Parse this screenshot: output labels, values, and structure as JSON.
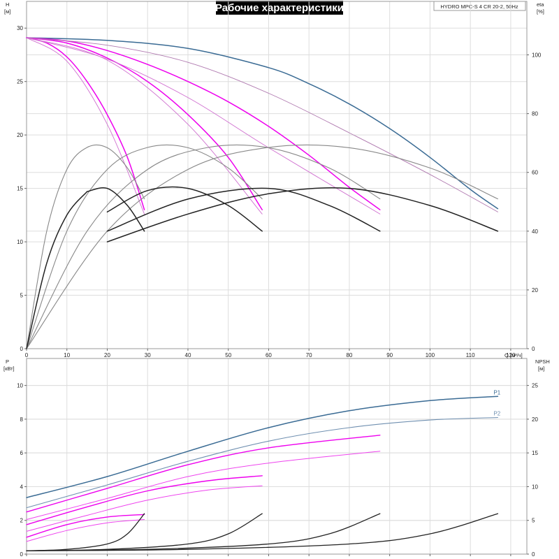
{
  "title": "Рабочие характеристики",
  "model_label": "HYDRO MPC-S 4 CR 20-2, 50Hz",
  "chart_data": [
    {
      "type": "line",
      "panel": "head_efficiency",
      "x_axis": {
        "label": "Q [м³/ч]",
        "ticks": [
          0,
          10,
          20,
          30,
          40,
          50,
          60,
          70,
          80,
          90,
          100,
          110,
          120
        ],
        "lim": [
          0,
          124
        ]
      },
      "y_axis_left": {
        "label": "H [м]",
        "ticks": [
          0,
          5,
          10,
          15,
          20,
          25,
          30
        ],
        "lim": [
          0,
          32.5
        ]
      },
      "y_axis_right": {
        "label": "eta [%]",
        "ticks": [
          0,
          20,
          40,
          60,
          80,
          100
        ],
        "lim": [
          0,
          118.2
        ]
      },
      "grid": true,
      "series": [
        {
          "group": "head",
          "color": "#3a6b94",
          "width": 1.5,
          "x": [
            0,
            20,
            40,
            60,
            70,
            80,
            90,
            100,
            110,
            116.8
          ],
          "y": [
            29.1,
            28.85,
            28.1,
            26.3,
            24.8,
            22.9,
            20.6,
            17.9,
            14.9,
            13.1
          ],
          "axis": "left"
        },
        {
          "group": "head",
          "color": "#ee00ee",
          "width": 1.5,
          "x": [
            0,
            10,
            20,
            30,
            40,
            50,
            60,
            70,
            80,
            87.6
          ],
          "y": [
            29.1,
            28.8,
            27.9,
            26.6,
            25.0,
            23.1,
            20.8,
            18.1,
            15.1,
            13.0
          ],
          "axis": "left"
        },
        {
          "group": "head",
          "color": "#ee00ee",
          "width": 1.5,
          "x": [
            0,
            10,
            20,
            30,
            40,
            50,
            58.4
          ],
          "y": [
            29.1,
            28.6,
            27.2,
            25.0,
            21.9,
            17.9,
            13.0
          ],
          "axis": "left"
        },
        {
          "group": "head",
          "color": "#ee00ee",
          "width": 1.5,
          "x": [
            0,
            5,
            10,
            15,
            20,
            25,
            29.2
          ],
          "y": [
            29.1,
            28.6,
            27.3,
            25.0,
            21.9,
            17.9,
            13.0
          ],
          "axis": "left"
        },
        {
          "group": "head_thin",
          "color": "#b07ab0",
          "width": 0.9,
          "x": [
            0,
            20,
            40,
            60,
            80,
            100,
            116.8
          ],
          "y": [
            29.1,
            28.4,
            26.8,
            23.9,
            20.2,
            16.3,
            12.8
          ],
          "axis": "left"
        },
        {
          "group": "head_thin",
          "color": "#d070d0",
          "width": 0.9,
          "x": [
            0,
            20,
            40,
            60,
            87.6
          ],
          "y": [
            29.1,
            27.1,
            23.5,
            18.8,
            12.6
          ],
          "axis": "left"
        },
        {
          "group": "head_thin",
          "color": "#d070d0",
          "width": 0.9,
          "x": [
            0,
            20,
            40,
            58.4
          ],
          "y": [
            29.1,
            27.0,
            21.0,
            12.6
          ],
          "axis": "left"
        },
        {
          "group": "head_thin",
          "color": "#d070d0",
          "width": 0.9,
          "x": [
            0,
            10,
            20,
            29.2
          ],
          "y": [
            29.1,
            26.9,
            21.0,
            12.6
          ],
          "axis": "left"
        },
        {
          "group": "eta",
          "color": "#888888",
          "width": 1.1,
          "x": [
            0,
            5,
            10,
            15,
            20,
            25,
            29.2
          ],
          "y": [
            0,
            40.0,
            61.0,
            68.5,
            68.4,
            61.5,
            51.0
          ],
          "axis": "right"
        },
        {
          "group": "eta",
          "color": "#888888",
          "width": 1.1,
          "x": [
            0,
            10,
            20,
            30,
            40,
            50,
            58.4
          ],
          "y": [
            0,
            40.0,
            61.0,
            68.5,
            68.4,
            61.5,
            51.0
          ],
          "axis": "right"
        },
        {
          "group": "eta",
          "color": "#888888",
          "width": 1.1,
          "x": [
            0,
            15,
            30,
            45,
            60,
            75,
            87.6
          ],
          "y": [
            0,
            40.0,
            61.0,
            68.5,
            68.4,
            61.5,
            51.0
          ],
          "axis": "right"
        },
        {
          "group": "eta",
          "color": "#888888",
          "width": 1.1,
          "x": [
            0,
            20,
            40,
            60,
            80,
            100,
            116.8
          ],
          "y": [
            0,
            40.0,
            61.0,
            68.5,
            68.4,
            61.5,
            51.0
          ],
          "axis": "right"
        },
        {
          "group": "eta_line2",
          "color": "#222222",
          "width": 1.5,
          "x": [
            15,
            20,
            25,
            29.2
          ],
          "y": [
            14.7,
            15.0,
            13.4,
            11.0
          ],
          "axis": "left"
        },
        {
          "group": "eta_line2",
          "color": "#222222",
          "width": 1.5,
          "x": [
            20,
            30,
            40,
            50,
            58.4
          ],
          "y": [
            12.8,
            14.8,
            15.0,
            13.4,
            11.0
          ],
          "axis": "left"
        },
        {
          "group": "eta_line2",
          "color": "#222222",
          "width": 1.5,
          "x": [
            20,
            40,
            60,
            75,
            87.6
          ],
          "y": [
            11.0,
            14.0,
            15.0,
            13.4,
            11.0
          ],
          "axis": "left"
        },
        {
          "group": "eta_line2",
          "color": "#222222",
          "width": 1.5,
          "x": [
            20,
            40,
            60,
            80,
            100,
            116.8
          ],
          "y": [
            10.0,
            12.6,
            14.5,
            15.0,
            13.4,
            11.0
          ],
          "axis": "left"
        },
        {
          "group": "eta_line2",
          "color": "#222222",
          "width": 1.5,
          "x": [
            0,
            5,
            10,
            15
          ],
          "y": [
            0,
            8.0,
            12.5,
            14.7
          ],
          "axis": "left"
        }
      ]
    },
    {
      "type": "line",
      "panel": "power_npsh",
      "x_axis": {
        "lim": [
          0,
          124
        ]
      },
      "y_axis_left": {
        "label": "P [кВт]",
        "ticks": [
          0,
          2,
          4,
          6,
          8,
          10
        ],
        "lim": [
          0,
          11.6
        ]
      },
      "y_axis_right": {
        "label": "NPSH [м]",
        "ticks": [
          0,
          5,
          10,
          15,
          20,
          25
        ],
        "lim": [
          0,
          29.0
        ]
      },
      "grid": true,
      "series": [
        {
          "name": "P1",
          "group": "p1",
          "color": "#3a6b94",
          "width": 1.5,
          "x": [
            0,
            20,
            40,
            60,
            80,
            100,
            116.8
          ],
          "y": [
            3.35,
            4.6,
            6.1,
            7.5,
            8.5,
            9.1,
            9.35
          ],
          "axis": "left"
        },
        {
          "name": "P2",
          "group": "p2",
          "color": "#6f8fb0",
          "width": 1.1,
          "x": [
            0,
            20,
            40,
            60,
            80,
            100,
            116.8
          ],
          "y": [
            2.75,
            4.1,
            5.5,
            6.7,
            7.5,
            7.95,
            8.1
          ],
          "axis": "left"
        },
        {
          "group": "p",
          "color": "#ee00ee",
          "width": 1.4,
          "x": [
            0,
            20,
            40,
            60,
            87.6
          ],
          "y": [
            2.5,
            3.9,
            5.3,
            6.3,
            7.05
          ],
          "axis": "left"
        },
        {
          "group": "p",
          "color": "#ee44ee",
          "width": 1.0,
          "x": [
            0,
            20,
            40,
            60,
            87.6
          ],
          "y": [
            2.05,
            3.3,
            4.6,
            5.4,
            6.1
          ],
          "axis": "left"
        },
        {
          "group": "p",
          "color": "#ee00ee",
          "width": 1.4,
          "x": [
            0,
            15,
            30,
            45,
            58.4
          ],
          "y": [
            1.75,
            2.8,
            3.75,
            4.35,
            4.65
          ],
          "axis": "left"
        },
        {
          "group": "p",
          "color": "#ee44ee",
          "width": 1.0,
          "x": [
            0,
            15,
            30,
            45,
            58.4
          ],
          "y": [
            1.35,
            2.3,
            3.2,
            3.8,
            4.05
          ],
          "axis": "left"
        },
        {
          "group": "p",
          "color": "#ee00ee",
          "width": 1.4,
          "x": [
            0,
            10,
            20,
            29.2
          ],
          "y": [
            1.0,
            1.75,
            2.2,
            2.35
          ],
          "axis": "left"
        },
        {
          "group": "p",
          "color": "#ee44ee",
          "width": 1.0,
          "x": [
            0,
            10,
            20,
            29.2
          ],
          "y": [
            0.75,
            1.4,
            1.85,
            2.05
          ],
          "axis": "left"
        },
        {
          "group": "npsh",
          "color": "#222222",
          "width": 1.3,
          "x": [
            0,
            10,
            20,
            25,
            29.2
          ],
          "y": [
            0.5,
            0.7,
            1.5,
            3.0,
            6.0
          ],
          "axis": "right"
        },
        {
          "group": "npsh",
          "color": "#222222",
          "width": 1.3,
          "x": [
            0,
            20,
            40,
            50,
            58.4
          ],
          "y": [
            0.5,
            0.7,
            1.5,
            3.0,
            6.0
          ],
          "axis": "right"
        },
        {
          "group": "npsh",
          "color": "#222222",
          "width": 1.3,
          "x": [
            0,
            30,
            60,
            75,
            87.6
          ],
          "y": [
            0.5,
            0.7,
            1.5,
            3.0,
            6.0
          ],
          "axis": "right"
        },
        {
          "group": "npsh",
          "color": "#222222",
          "width": 1.3,
          "x": [
            0,
            40,
            80,
            100,
            116.8
          ],
          "y": [
            0.5,
            0.7,
            1.5,
            3.0,
            6.0
          ],
          "axis": "right"
        }
      ]
    }
  ]
}
